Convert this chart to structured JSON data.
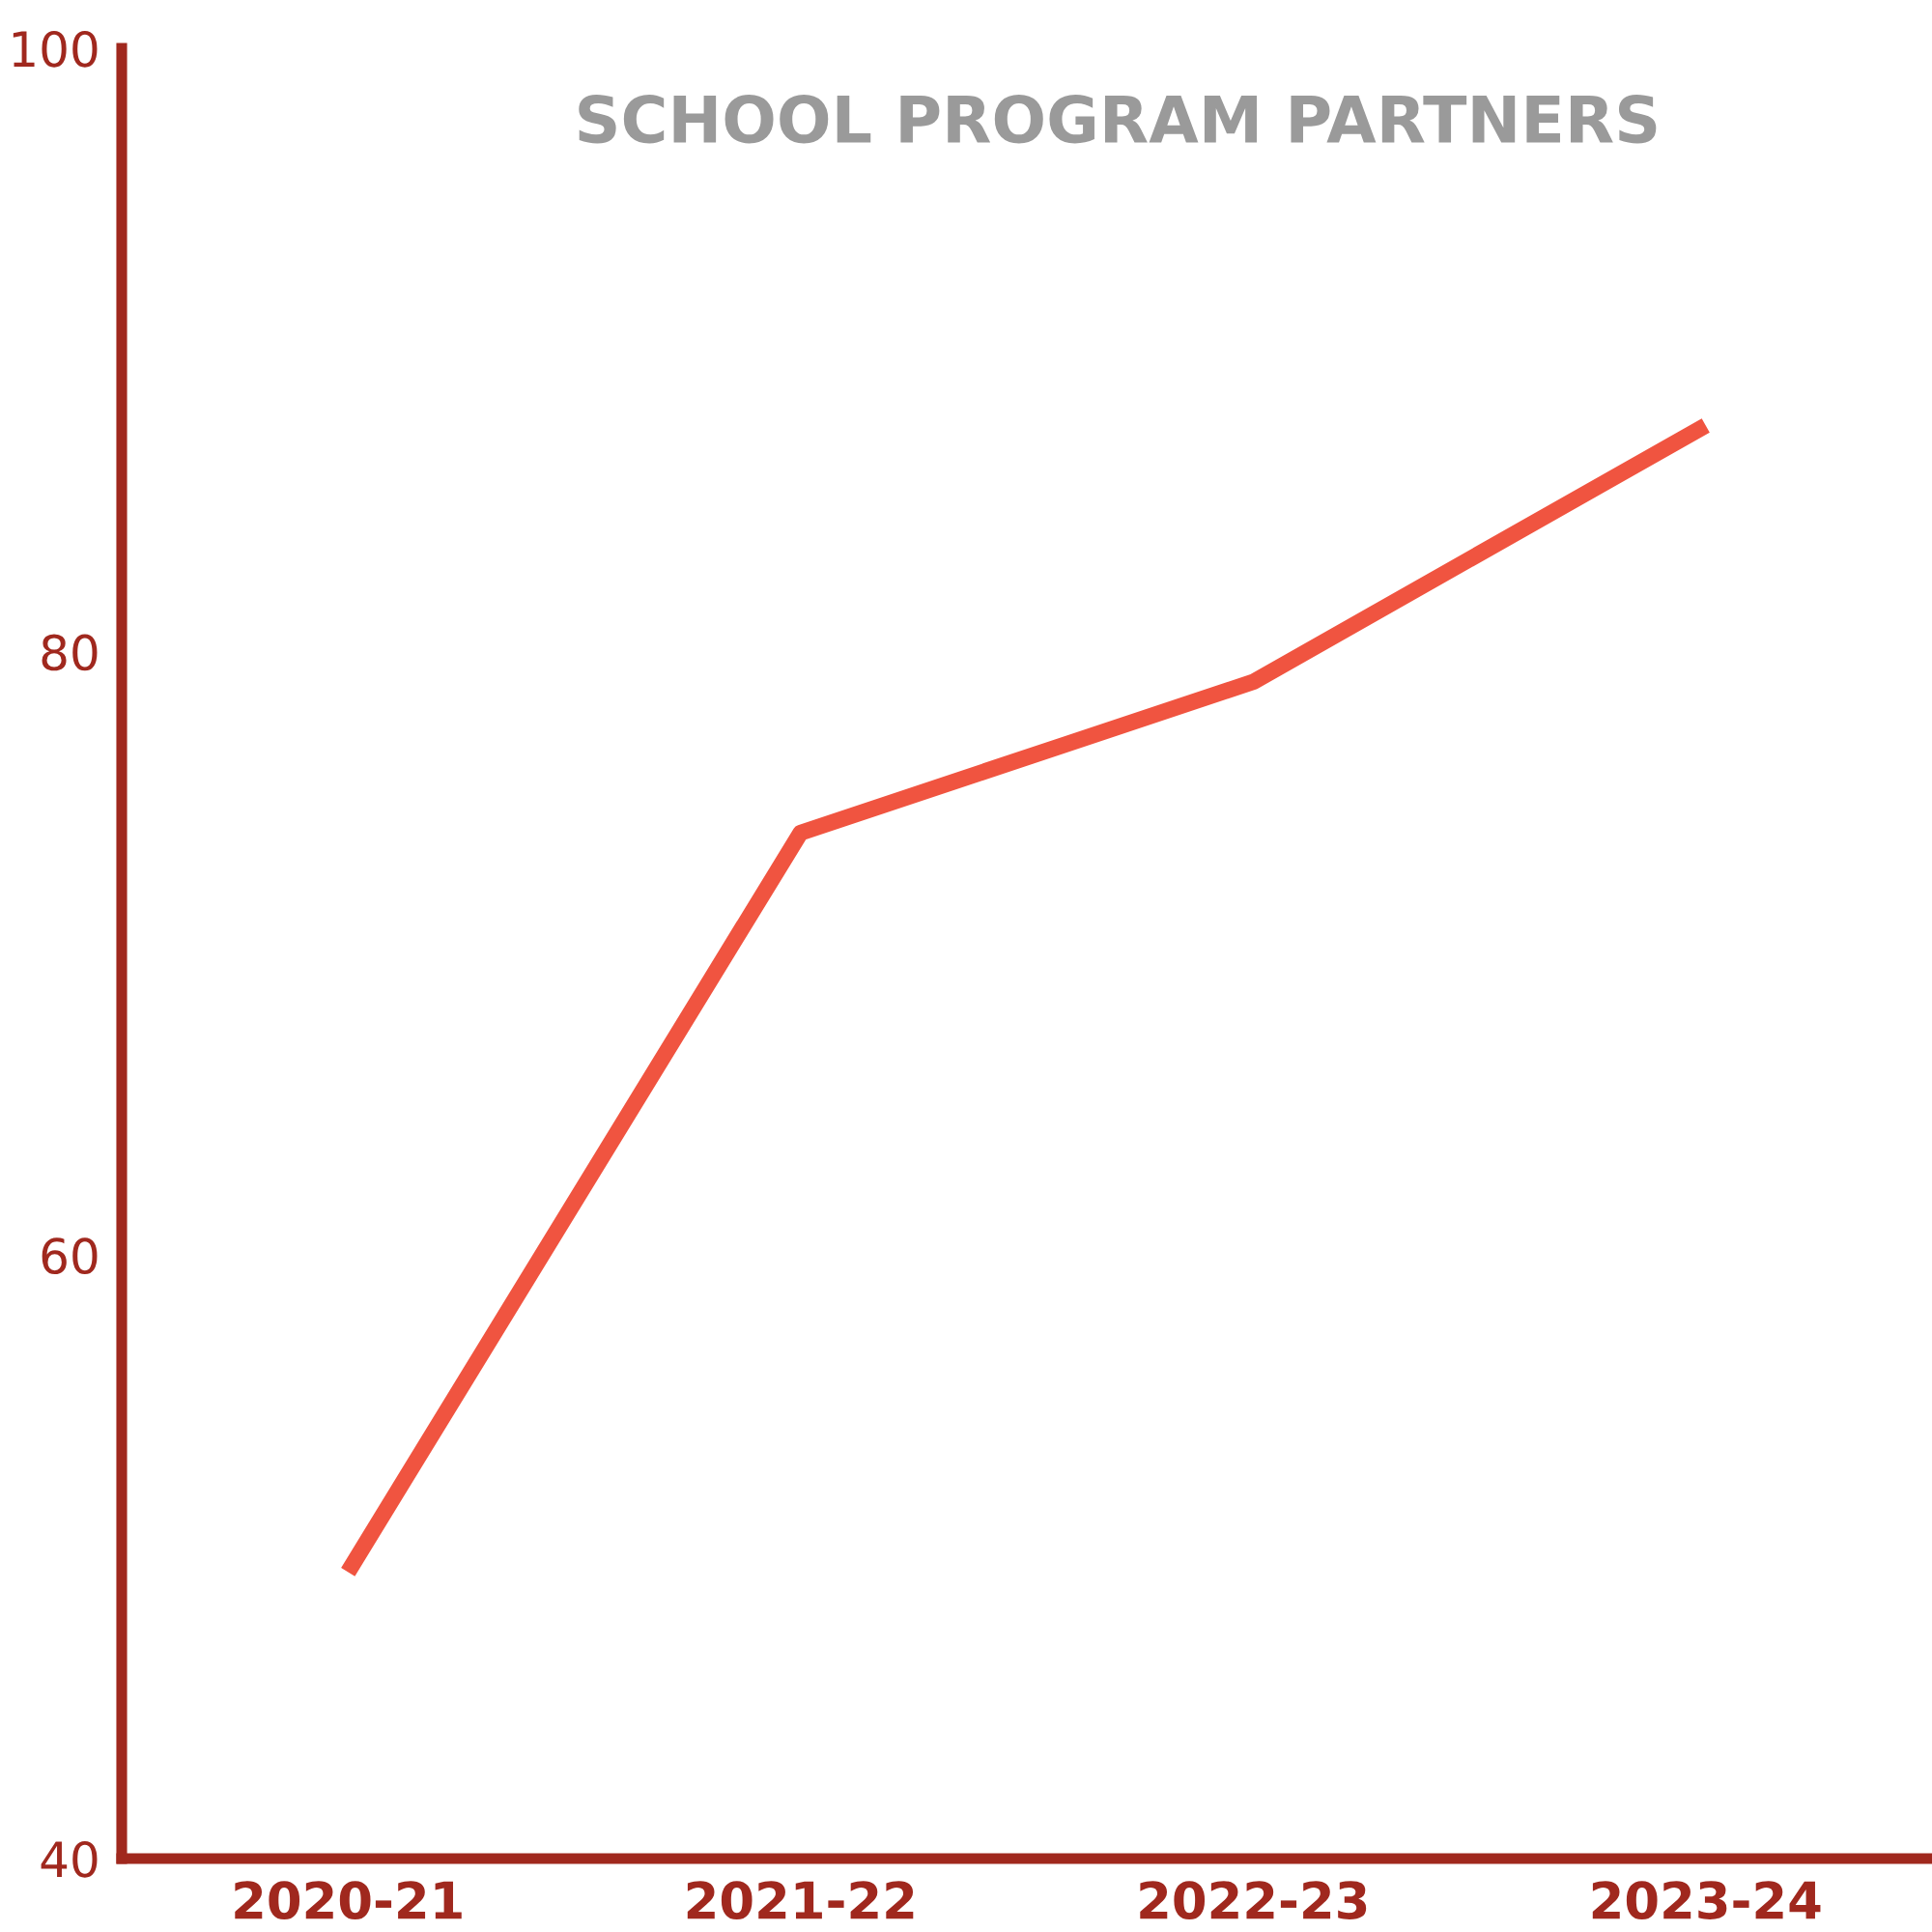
{
  "chart_data": {
    "type": "line",
    "title": "SCHOOL PROGRAM PARTNERS",
    "categories": [
      "2020-21",
      "2021-22",
      "2022-23",
      "2023-24"
    ],
    "series": [
      {
        "color": "#f05440",
        "values": [
          49.5,
          74,
          79,
          87.5
        ]
      }
    ],
    "ylim": [
      40,
      100
    ],
    "yticks": [
      40,
      60,
      80,
      100
    ],
    "grid": false,
    "legend": false,
    "marker": "none",
    "line_style": "solid"
  }
}
